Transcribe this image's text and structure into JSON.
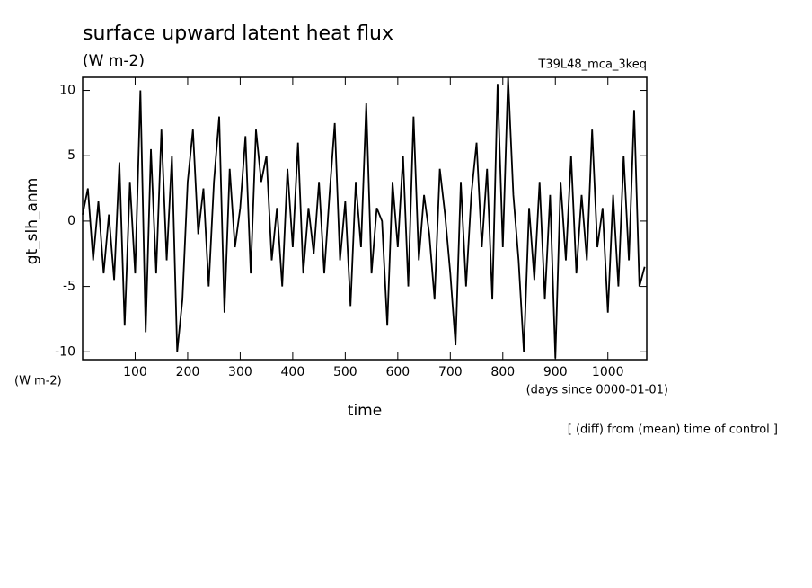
{
  "chart_data": {
    "type": "line",
    "title": "surface upward latent heat flux",
    "units": "(W m-2)",
    "run_label": "T39L48_mca_3keq",
    "y_label": "gt_slh_anm",
    "y_units": "(W m-2)",
    "x_label": "time",
    "x_units": "(days since 0000-01-01)",
    "annotation": "[ (diff) from (mean) time of control ]",
    "xlim": [
      0,
      1074
    ],
    "ylim": [
      -10.6,
      11
    ],
    "xticks": [
      100,
      200,
      300,
      400,
      500,
      600,
      700,
      800,
      900,
      1000
    ],
    "yticks": [
      -10,
      -5,
      0,
      5,
      10
    ],
    "series": [
      {
        "color": "#000000",
        "x": [
          0,
          10,
          20,
          30,
          40,
          50,
          60,
          70,
          80,
          90,
          100,
          110,
          120,
          130,
          140,
          150,
          160,
          170,
          180,
          190,
          200,
          210,
          220,
          230,
          240,
          250,
          260,
          270,
          280,
          290,
          300,
          310,
          320,
          330,
          340,
          350,
          360,
          370,
          380,
          390,
          400,
          410,
          420,
          430,
          440,
          450,
          460,
          470,
          480,
          490,
          500,
          510,
          520,
          530,
          540,
          550,
          560,
          570,
          580,
          590,
          600,
          610,
          620,
          630,
          640,
          650,
          660,
          670,
          680,
          690,
          700,
          710,
          720,
          730,
          740,
          750,
          760,
          770,
          780,
          790,
          800,
          810,
          820,
          830,
          840,
          850,
          860,
          870,
          880,
          890,
          900,
          910,
          920,
          930,
          940,
          950,
          960,
          970,
          980,
          990,
          1000,
          1010,
          1020,
          1030,
          1040,
          1050,
          1060,
          1070
        ],
        "values": [
          0.5,
          2.5,
          -3,
          1.5,
          -4,
          0.5,
          -4.5,
          4.5,
          -8,
          3,
          -4,
          10,
          -8.5,
          5.5,
          -4,
          7,
          -3,
          5,
          -10,
          -6,
          3,
          7,
          -1,
          2.5,
          -5,
          3,
          8,
          -7,
          4,
          -2,
          1,
          6.5,
          -4,
          7,
          3,
          5,
          -3,
          1,
          -5,
          4,
          -2,
          6,
          -4,
          1,
          -2.5,
          3,
          -4,
          2,
          7.5,
          -3,
          1.5,
          -6.5,
          3,
          -2,
          9,
          -4,
          1,
          0,
          -8,
          3,
          -2,
          5,
          -5,
          8,
          -3,
          2,
          -1,
          -6,
          4,
          0.5,
          -4,
          -9.5,
          3,
          -5,
          2,
          6,
          -2,
          4,
          -6,
          10.5,
          -2,
          11,
          2,
          -3,
          -10,
          1,
          -4.5,
          3,
          -6,
          2,
          -10.5,
          3,
          -3,
          5,
          -4,
          2,
          -3,
          7,
          -2,
          1,
          -7,
          2,
          -5,
          5,
          -3,
          8.5,
          -5,
          -3.5
        ]
      }
    ]
  }
}
